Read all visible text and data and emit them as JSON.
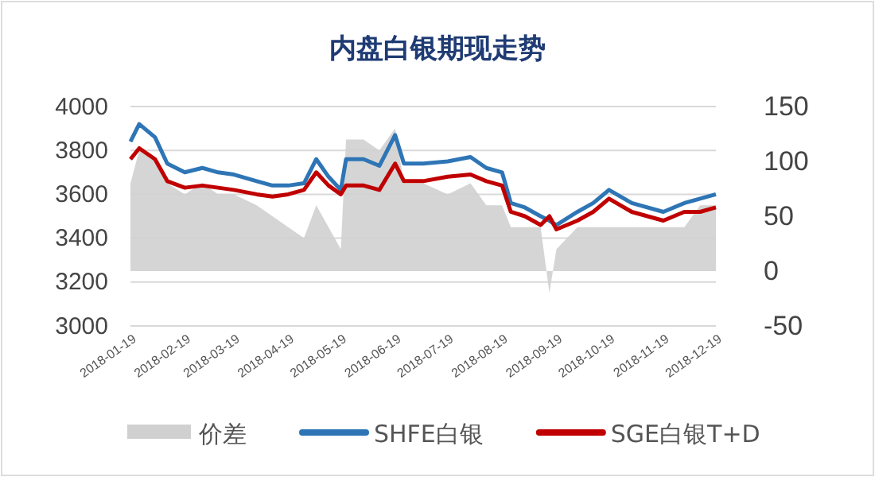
{
  "chart_data": {
    "type": "line",
    "title": "内盘白银期现走势",
    "x": [
      "2018-01-19",
      "2018-01-24",
      "2018-02-02",
      "2018-02-09",
      "2018-02-19",
      "2018-03-01",
      "2018-03-10",
      "2018-03-19",
      "2018-04-01",
      "2018-04-10",
      "2018-04-19",
      "2018-04-28",
      "2018-05-05",
      "2018-05-12",
      "2018-05-19",
      "2018-05-22",
      "2018-06-01",
      "2018-06-10",
      "2018-06-19",
      "2018-06-24",
      "2018-07-05",
      "2018-07-19",
      "2018-08-01",
      "2018-08-10",
      "2018-08-19",
      "2018-08-24",
      "2018-09-01",
      "2018-09-10",
      "2018-09-15",
      "2018-09-19",
      "2018-10-01",
      "2018-10-10",
      "2018-10-19",
      "2018-11-01",
      "2018-11-19",
      "2018-12-01",
      "2018-12-10",
      "2018-12-19"
    ],
    "series": [
      {
        "name": "价差",
        "type": "area",
        "axis": "y2",
        "color": "#d0d0d0",
        "values": [
          80,
          110,
          100,
          80,
          70,
          80,
          70,
          70,
          60,
          50,
          40,
          30,
          60,
          40,
          20,
          120,
          120,
          110,
          130,
          80,
          80,
          70,
          80,
          60,
          60,
          40,
          40,
          40,
          -20,
          20,
          40,
          40,
          40,
          40,
          40,
          40,
          60,
          60
        ]
      },
      {
        "name": "SHFE白银",
        "color": "#2e75b6",
        "values": [
          3840,
          3920,
          3860,
          3740,
          3700,
          3720,
          3700,
          3690,
          3660,
          3640,
          3640,
          3650,
          3760,
          3680,
          3620,
          3760,
          3760,
          3730,
          3870,
          3740,
          3740,
          3750,
          3770,
          3720,
          3700,
          3560,
          3540,
          3500,
          3480,
          3460,
          3520,
          3560,
          3620,
          3560,
          3520,
          3560,
          3580,
          3600
        ]
      },
      {
        "name": "SGE白银T+D",
        "color": "#c00000",
        "values": [
          3760,
          3810,
          3760,
          3660,
          3630,
          3640,
          3630,
          3620,
          3600,
          3590,
          3600,
          3620,
          3700,
          3640,
          3600,
          3640,
          3640,
          3620,
          3740,
          3660,
          3660,
          3680,
          3690,
          3660,
          3640,
          3520,
          3500,
          3460,
          3500,
          3440,
          3480,
          3520,
          3580,
          3520,
          3480,
          3520,
          3520,
          3540
        ]
      }
    ],
    "xlim": [
      "2018-01-19",
      "2018-12-19"
    ],
    "xticks": [
      "2018-01-19",
      "2018-02-19",
      "2018-03-19",
      "2018-04-19",
      "2018-05-19",
      "2018-06-19",
      "2018-07-19",
      "2018-08-19",
      "2018-09-19",
      "2018-10-19",
      "2018-11-19",
      "2018-12-19"
    ],
    "ylim": [
      3000,
      4000
    ],
    "yticks": [
      3000,
      3200,
      3400,
      3600,
      3800,
      4000
    ],
    "y2lim": [
      -50,
      150
    ],
    "y2ticks": [
      -50,
      0,
      50,
      100,
      150
    ],
    "grid": "y",
    "legend": "bottom",
    "marker": "none",
    "line_style": "solid"
  }
}
